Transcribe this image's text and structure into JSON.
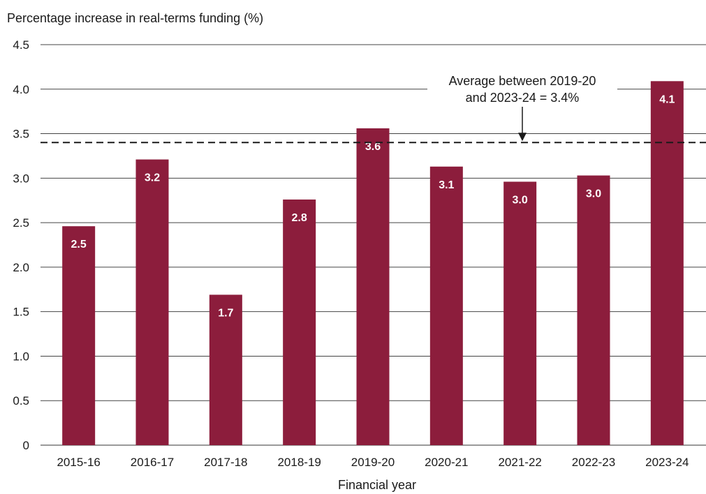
{
  "chart_data": {
    "type": "bar",
    "ylabel": "Percentage increase in real-terms funding (%)",
    "xlabel": "Financial year",
    "categories": [
      "2015-16",
      "2016-17",
      "2017-18",
      "2018-19",
      "2019-20",
      "2020-21",
      "2021-22",
      "2022-23",
      "2023-24"
    ],
    "values": [
      2.46,
      3.21,
      1.69,
      2.76,
      3.56,
      3.13,
      2.96,
      3.03,
      4.09
    ],
    "data_labels": [
      "2.5",
      "3.2",
      "1.7",
      "2.8",
      "3.6",
      "3.1",
      "3.0",
      "3.0",
      "4.1"
    ],
    "ylim": [
      0,
      4.5
    ],
    "yticks": [
      "0",
      "0.5",
      "1.0",
      "1.5",
      "2.0",
      "2.5",
      "3.0",
      "3.5",
      "4.0",
      "4.5"
    ],
    "ytick_values": [
      0,
      0.5,
      1.0,
      1.5,
      2.0,
      2.5,
      3.0,
      3.5,
      4.0,
      4.5
    ],
    "grid": true,
    "bar_color": "#8c1d3c",
    "reference_line": {
      "value": 3.4,
      "style": "dashed",
      "label_line1": "Average between 2019-20",
      "label_line2": "and 2023-24 = 3.4%"
    }
  }
}
